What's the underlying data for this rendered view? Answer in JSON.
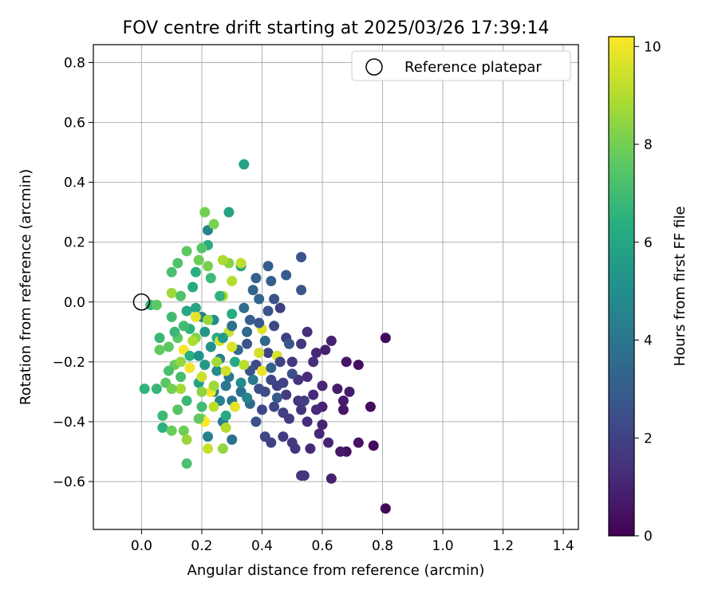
{
  "chart_data": {
    "type": "scatter",
    "title": "FOV centre drift starting at 2025/03/26 17:39:14",
    "xlabel": "Angular distance from reference (arcmin)",
    "ylabel": "Rotation from reference (arcmin)",
    "xlim": [
      -0.16,
      1.45
    ],
    "ylim": [
      -0.76,
      0.86
    ],
    "xticks": [
      0.0,
      0.2,
      0.4,
      0.6,
      0.8,
      1.0,
      1.2,
      1.4
    ],
    "xtick_labels": [
      "0.0",
      "0.2",
      "0.4",
      "0.6",
      "0.8",
      "1.0",
      "1.2",
      "1.4"
    ],
    "yticks": [
      -0.6,
      -0.4,
      -0.2,
      0.0,
      0.2,
      0.4,
      0.6,
      0.8
    ],
    "ytick_labels": [
      "−0.6",
      "−0.4",
      "−0.2",
      "0.0",
      "0.2",
      "0.4",
      "0.6",
      "0.8"
    ],
    "grid": true,
    "legend": {
      "position": "top-right",
      "entries": [
        {
          "label": "Reference platepar",
          "marker": "open-circle",
          "color": "#000000"
        }
      ]
    },
    "reference_point": {
      "x": 0.0,
      "y": 0.0
    },
    "colorbar": {
      "label": "Hours from first FF file",
      "range": [
        0,
        10.2
      ],
      "ticks": [
        0,
        2,
        4,
        6,
        8,
        10
      ],
      "tick_labels": [
        "0",
        "2",
        "4",
        "6",
        "8",
        "10"
      ],
      "colormap": "viridis"
    },
    "points": [
      [
        0.81,
        -0.69,
        0.2
      ],
      [
        0.81,
        -0.12,
        0.2
      ],
      [
        0.77,
        -0.48,
        0.3
      ],
      [
        0.76,
        -0.35,
        0.3
      ],
      [
        0.72,
        -0.21,
        0.4
      ],
      [
        0.72,
        -0.47,
        0.5
      ],
      [
        0.68,
        -0.5,
        0.5
      ],
      [
        0.68,
        -0.2,
        0.6
      ],
      [
        0.67,
        -0.36,
        0.6
      ],
      [
        0.66,
        -0.5,
        0.7
      ],
      [
        0.67,
        -0.33,
        0.7
      ],
      [
        0.69,
        -0.3,
        0.8
      ],
      [
        0.65,
        -0.29,
        0.8
      ],
      [
        0.63,
        -0.13,
        0.9
      ],
      [
        0.61,
        -0.16,
        0.9
      ],
      [
        0.6,
        -0.35,
        1.0
      ],
      [
        0.6,
        -0.41,
        1.0
      ],
      [
        0.59,
        -0.44,
        1.1
      ],
      [
        0.58,
        -0.17,
        1.1
      ],
      [
        0.57,
        -0.31,
        1.2
      ],
      [
        0.56,
        -0.49,
        1.2
      ],
      [
        0.55,
        -0.4,
        1.3
      ],
      [
        0.55,
        -0.25,
        1.3
      ],
      [
        0.53,
        -0.58,
        1.4
      ],
      [
        0.54,
        -0.58,
        1.5
      ],
      [
        0.53,
        -0.36,
        1.5
      ],
      [
        0.51,
        -0.49,
        1.6
      ],
      [
        0.53,
        -0.14,
        1.6
      ],
      [
        0.5,
        -0.2,
        1.7
      ],
      [
        0.5,
        -0.47,
        1.7
      ],
      [
        0.48,
        -0.31,
        1.8
      ],
      [
        0.48,
        -0.12,
        1.9
      ],
      [
        0.46,
        -0.02,
        1.9
      ],
      [
        0.45,
        -0.28,
        2.0
      ],
      [
        0.43,
        -0.47,
        2.0
      ],
      [
        0.42,
        -0.17,
        2.1
      ],
      [
        0.41,
        -0.45,
        2.1
      ],
      [
        0.44,
        -0.08,
        2.2
      ],
      [
        0.4,
        -0.36,
        2.2
      ],
      [
        0.38,
        -0.21,
        2.3
      ],
      [
        0.53,
        0.15,
        2.6
      ],
      [
        0.53,
        0.04,
        2.7
      ],
      [
        0.48,
        0.09,
        2.9
      ],
      [
        0.42,
        0.12,
        3.0
      ],
      [
        0.43,
        0.07,
        3.1
      ],
      [
        0.38,
        0.08,
        3.2
      ],
      [
        0.37,
        0.04,
        3.3
      ],
      [
        0.36,
        -0.34,
        3.4
      ],
      [
        0.35,
        -0.1,
        3.5
      ],
      [
        0.34,
        -0.02,
        3.6
      ],
      [
        0.33,
        -0.3,
        3.7
      ],
      [
        0.3,
        -0.46,
        3.8
      ],
      [
        0.3,
        -0.33,
        3.9
      ],
      [
        0.29,
        -0.25,
        4.0
      ],
      [
        0.27,
        -0.4,
        4.1
      ],
      [
        0.26,
        -0.19,
        4.2
      ],
      [
        0.24,
        -0.3,
        4.3
      ],
      [
        0.22,
        -0.45,
        4.4
      ],
      [
        0.2,
        -0.05,
        4.5
      ],
      [
        0.22,
        0.24,
        4.6
      ],
      [
        0.34,
        0.46,
        5.8
      ],
      [
        0.29,
        0.3,
        5.9
      ],
      [
        0.33,
        0.12,
        6.0
      ],
      [
        0.31,
        -0.2,
        6.1
      ],
      [
        0.28,
        -0.38,
        6.2
      ],
      [
        0.25,
        -0.12,
        6.3
      ],
      [
        0.22,
        0.19,
        6.3
      ],
      [
        0.18,
        0.1,
        6.4
      ],
      [
        0.16,
        -0.09,
        6.5
      ],
      [
        0.07,
        -0.42,
        6.5
      ],
      [
        0.01,
        -0.29,
        6.6
      ],
      [
        0.05,
        -0.29,
        6.7
      ],
      [
        0.03,
        -0.01,
        6.7
      ],
      [
        0.06,
        -0.12,
        6.8
      ],
      [
        0.07,
        -0.38,
        6.9
      ],
      [
        0.1,
        -0.05,
        7.0
      ],
      [
        0.13,
        -0.25,
        7.1
      ],
      [
        0.15,
        -0.54,
        7.2
      ],
      [
        0.1,
        0.1,
        7.2
      ],
      [
        0.12,
        0.13,
        7.3
      ],
      [
        0.2,
        0.18,
        7.4
      ],
      [
        0.08,
        -0.27,
        7.5
      ],
      [
        0.05,
        -0.01,
        7.6
      ],
      [
        0.09,
        -0.15,
        7.6
      ],
      [
        0.06,
        -0.16,
        7.7
      ],
      [
        0.1,
        -0.43,
        7.8
      ],
      [
        0.14,
        -0.43,
        7.9
      ],
      [
        0.21,
        0.3,
        8.0
      ],
      [
        0.24,
        0.26,
        8.1
      ],
      [
        0.29,
        0.13,
        8.3
      ],
      [
        0.2,
        -0.39,
        8.4
      ],
      [
        0.27,
        -0.49,
        8.5
      ],
      [
        0.15,
        -0.46,
        8.6
      ],
      [
        0.1,
        0.03,
        8.7
      ],
      [
        0.13,
        -0.29,
        8.8
      ],
      [
        0.27,
        0.14,
        8.9
      ],
      [
        0.3,
        0.07,
        9.0
      ],
      [
        0.33,
        0.13,
        9.2
      ],
      [
        0.22,
        -0.49,
        9.3
      ],
      [
        0.29,
        -0.1,
        9.4
      ],
      [
        0.39,
        -0.17,
        9.5
      ],
      [
        0.45,
        -0.18,
        9.6
      ],
      [
        0.4,
        -0.09,
        9.7
      ],
      [
        0.31,
        -0.35,
        9.8
      ],
      [
        0.4,
        -0.23,
        9.9
      ],
      [
        0.23,
        -0.3,
        10.0
      ],
      [
        0.14,
        -0.16,
        10.1
      ],
      [
        0.21,
        -0.4,
        10.2
      ],
      [
        0.63,
        -0.59,
        0.9
      ],
      [
        0.62,
        -0.47,
        1.0
      ],
      [
        0.6,
        -0.28,
        1.1
      ],
      [
        0.57,
        -0.2,
        1.3
      ],
      [
        0.55,
        -0.1,
        1.4
      ],
      [
        0.52,
        -0.26,
        1.5
      ],
      [
        0.47,
        -0.45,
        1.8
      ],
      [
        0.47,
        -0.37,
        1.9
      ],
      [
        0.46,
        -0.2,
        2.0
      ],
      [
        0.44,
        -0.35,
        2.1
      ],
      [
        0.43,
        -0.26,
        2.2
      ],
      [
        0.41,
        -0.3,
        2.3
      ],
      [
        0.39,
        -0.29,
        2.4
      ],
      [
        0.38,
        -0.4,
        2.5
      ],
      [
        0.44,
        0.01,
        2.5
      ],
      [
        0.42,
        -0.03,
        2.6
      ],
      [
        0.36,
        -0.23,
        2.6
      ],
      [
        0.35,
        -0.14,
        2.7
      ],
      [
        0.39,
        -0.07,
        2.8
      ],
      [
        0.47,
        -0.27,
        2.0
      ],
      [
        0.49,
        -0.39,
        1.8
      ],
      [
        0.58,
        -0.36,
        1.2
      ],
      [
        0.52,
        -0.33,
        1.6
      ],
      [
        0.36,
        -0.06,
        3.0
      ],
      [
        0.32,
        -0.16,
        3.5
      ],
      [
        0.3,
        -0.08,
        3.8
      ],
      [
        0.28,
        -0.28,
        4.0
      ],
      [
        0.26,
        -0.33,
        4.5
      ],
      [
        0.25,
        -0.23,
        4.8
      ],
      [
        0.24,
        -0.06,
        5.0
      ],
      [
        0.23,
        -0.15,
        5.2
      ],
      [
        0.21,
        -0.21,
        5.5
      ],
      [
        0.19,
        -0.27,
        5.8
      ],
      [
        0.18,
        -0.02,
        6.0
      ],
      [
        0.17,
        0.05,
        6.2
      ],
      [
        0.16,
        -0.18,
        6.4
      ],
      [
        0.15,
        -0.33,
        6.8
      ],
      [
        0.14,
        -0.08,
        7.0
      ],
      [
        0.13,
        0.02,
        7.3
      ],
      [
        0.12,
        -0.12,
        7.6
      ],
      [
        0.11,
        -0.21,
        7.8
      ],
      [
        0.1,
        -0.29,
        8.0
      ],
      [
        0.18,
        -0.12,
        8.2
      ],
      [
        0.2,
        -0.3,
        8.4
      ],
      [
        0.22,
        -0.06,
        8.6
      ],
      [
        0.25,
        -0.2,
        8.8
      ],
      [
        0.27,
        0.02,
        9.0
      ],
      [
        0.24,
        -0.35,
        9.2
      ],
      [
        0.2,
        -0.25,
        9.4
      ],
      [
        0.26,
        -0.13,
        9.6
      ],
      [
        0.18,
        -0.05,
        9.8
      ],
      [
        0.16,
        -0.22,
        10.0
      ],
      [
        0.28,
        -0.23,
        9.5
      ],
      [
        0.3,
        -0.15,
        9.7
      ],
      [
        0.34,
        -0.21,
        9.1
      ],
      [
        0.19,
        0.14,
        7.9
      ],
      [
        0.15,
        0.17,
        7.6
      ],
      [
        0.23,
        0.08,
        6.9
      ],
      [
        0.26,
        0.02,
        6.6
      ],
      [
        0.3,
        -0.04,
        6.3
      ],
      [
        0.12,
        -0.36,
        7.4
      ],
      [
        0.09,
        -0.23,
        7.2
      ],
      [
        0.2,
        -0.35,
        7.0
      ],
      [
        0.21,
        -0.1,
        5.4
      ],
      [
        0.19,
        -0.18,
        5.1
      ],
      [
        0.27,
        -0.12,
        5.6
      ],
      [
        0.33,
        -0.27,
        4.9
      ],
      [
        0.35,
        -0.32,
        4.6
      ],
      [
        0.37,
        -0.26,
        4.2
      ],
      [
        0.41,
        -0.13,
        3.4
      ],
      [
        0.43,
        -0.22,
        3.2
      ],
      [
        0.45,
        -0.32,
        2.9
      ],
      [
        0.5,
        -0.24,
        2.4
      ],
      [
        0.54,
        -0.33,
        1.9
      ],
      [
        0.49,
        -0.14,
        2.7
      ],
      [
        0.39,
        0.01,
        3.3
      ],
      [
        0.17,
        -0.13,
        8.9
      ],
      [
        0.13,
        -0.2,
        8.5
      ],
      [
        0.22,
        0.12,
        8.1
      ],
      [
        0.24,
        -0.28,
        8.7
      ],
      [
        0.15,
        -0.03,
        6.1
      ],
      [
        0.11,
        -0.1,
        6.8
      ],
      [
        0.19,
        -0.39,
        7.7
      ],
      [
        0.28,
        -0.42,
        9.0
      ]
    ]
  }
}
